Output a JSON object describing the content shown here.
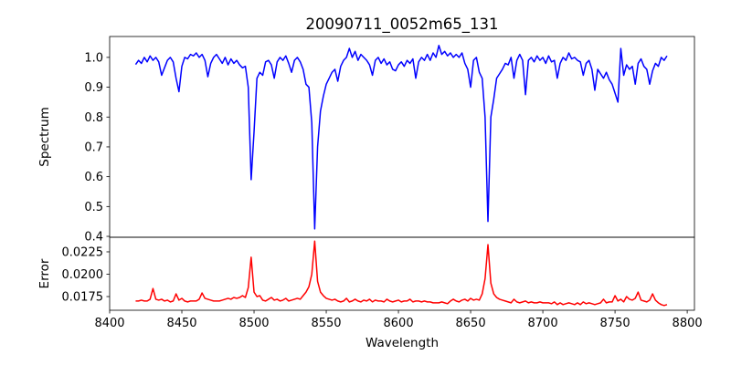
{
  "chart_data": [
    {
      "type": "line",
      "title": "20090711_0052m65_131",
      "xlabel": "",
      "ylabel": "Spectrum",
      "xlim": [
        8400,
        8805
      ],
      "ylim": [
        0.397,
        1.07
      ],
      "yticks": [
        "0.4",
        "0.5",
        "0.6",
        "0.7",
        "0.8",
        "0.9",
        "1.0"
      ],
      "ytick_values": [
        0.4,
        0.5,
        0.6,
        0.7,
        0.8,
        0.9,
        1.0
      ],
      "color": "#0000ff",
      "x_start": 8418,
      "x_step": 2,
      "values": [
        0.976,
        0.99,
        0.98,
        1.0,
        0.985,
        1.005,
        0.99,
        1.0,
        0.985,
        0.94,
        0.965,
        0.99,
        1.0,
        0.985,
        0.93,
        0.885,
        0.97,
        1.0,
        0.995,
        1.01,
        1.005,
        1.015,
        1.0,
        1.01,
        0.99,
        0.935,
        0.98,
        1.0,
        1.01,
        0.995,
        0.98,
        1.0,
        0.975,
        0.995,
        0.98,
        0.99,
        0.975,
        0.965,
        0.97,
        0.9,
        0.59,
        0.75,
        0.93,
        0.95,
        0.94,
        0.985,
        0.99,
        0.975,
        0.93,
        0.985,
        1.0,
        0.99,
        1.005,
        0.98,
        0.95,
        0.99,
        1.0,
        0.985,
        0.96,
        0.91,
        0.9,
        0.78,
        0.425,
        0.7,
        0.82,
        0.87,
        0.91,
        0.93,
        0.95,
        0.96,
        0.92,
        0.97,
        0.99,
        1.0,
        1.03,
        1.0,
        1.02,
        0.99,
        1.01,
        1.0,
        0.99,
        0.975,
        0.94,
        0.99,
        1.0,
        0.98,
        0.995,
        0.975,
        0.985,
        0.96,
        0.955,
        0.975,
        0.985,
        0.97,
        0.99,
        0.98,
        0.995,
        0.93,
        0.985,
        1.0,
        0.99,
        1.01,
        0.99,
        1.015,
        1.0,
        1.04,
        1.01,
        1.02,
        1.005,
        1.015,
        1.0,
        1.01,
        1.0,
        1.015,
        0.98,
        0.96,
        0.9,
        0.99,
        1.0,
        0.95,
        0.93,
        0.8,
        0.45,
        0.8,
        0.86,
        0.93,
        0.945,
        0.96,
        0.98,
        0.975,
        1.0,
        0.93,
        0.99,
        1.01,
        0.99,
        0.875,
        0.99,
        1.0,
        0.985,
        1.005,
        0.99,
        1.0,
        0.98,
        1.005,
        0.985,
        0.99,
        0.93,
        0.98,
        1.0,
        0.99,
        1.015,
        0.995,
        1.0,
        0.99,
        0.985,
        0.94,
        0.98,
        0.99,
        0.96,
        0.89,
        0.96,
        0.945,
        0.93,
        0.95,
        0.925,
        0.91,
        0.88,
        0.85,
        1.03,
        0.94,
        0.975,
        0.96,
        0.97,
        0.91,
        0.98,
        0.995,
        0.97,
        0.96,
        0.91,
        0.955,
        0.98,
        0.97,
        1.0,
        0.99,
        1.005
      ]
    },
    {
      "type": "line",
      "title": "",
      "xlabel": "Wavelength",
      "ylabel": "Error",
      "xlim": [
        8400,
        8805
      ],
      "ylim": [
        0.01597,
        0.02413
      ],
      "xticks": [
        "8400",
        "8450",
        "8500",
        "8550",
        "8600",
        "8650",
        "8700",
        "8750",
        "8800"
      ],
      "xtick_values": [
        8400,
        8450,
        8500,
        8550,
        8600,
        8650,
        8700,
        8750,
        8800
      ],
      "yticks": [
        "0.0175",
        "0.0200",
        "0.0225"
      ],
      "ytick_values": [
        0.0175,
        0.02,
        0.0225
      ],
      "color": "#ff0000",
      "x_start": 8418,
      "x_step": 2,
      "values": [
        0.017,
        0.017,
        0.0171,
        0.017,
        0.017,
        0.0172,
        0.0184,
        0.0172,
        0.0171,
        0.0172,
        0.017,
        0.0171,
        0.0169,
        0.017,
        0.0178,
        0.0171,
        0.0173,
        0.017,
        0.0169,
        0.017,
        0.017,
        0.017,
        0.0172,
        0.0179,
        0.0173,
        0.0172,
        0.0171,
        0.017,
        0.017,
        0.017,
        0.0171,
        0.0172,
        0.0173,
        0.0172,
        0.0174,
        0.0173,
        0.0174,
        0.0176,
        0.0174,
        0.0185,
        0.0219,
        0.018,
        0.0175,
        0.0176,
        0.0171,
        0.017,
        0.0172,
        0.0174,
        0.0171,
        0.0172,
        0.017,
        0.0171,
        0.0173,
        0.017,
        0.0171,
        0.0172,
        0.0173,
        0.0172,
        0.0176,
        0.018,
        0.0186,
        0.02,
        0.0237,
        0.0192,
        0.018,
        0.0176,
        0.0173,
        0.0172,
        0.0171,
        0.0172,
        0.017,
        0.0169,
        0.017,
        0.0173,
        0.0169,
        0.017,
        0.0172,
        0.017,
        0.0169,
        0.0171,
        0.017,
        0.0172,
        0.0169,
        0.0171,
        0.017,
        0.017,
        0.0169,
        0.0172,
        0.017,
        0.0169,
        0.017,
        0.0171,
        0.0169,
        0.017,
        0.017,
        0.0172,
        0.0169,
        0.017,
        0.017,
        0.0169,
        0.017,
        0.0169,
        0.0169,
        0.0168,
        0.0168,
        0.0168,
        0.0169,
        0.0168,
        0.0167,
        0.017,
        0.0172,
        0.017,
        0.0169,
        0.0171,
        0.0172,
        0.017,
        0.0173,
        0.0171,
        0.0172,
        0.0171,
        0.0178,
        0.0195,
        0.0233,
        0.019,
        0.0178,
        0.0174,
        0.0172,
        0.0171,
        0.017,
        0.0169,
        0.0168,
        0.0172,
        0.0169,
        0.0168,
        0.0169,
        0.017,
        0.0168,
        0.0169,
        0.0168,
        0.0168,
        0.0169,
        0.0168,
        0.0168,
        0.0168,
        0.0167,
        0.0169,
        0.0166,
        0.0168,
        0.0166,
        0.0167,
        0.0168,
        0.0167,
        0.0166,
        0.0168,
        0.0166,
        0.0169,
        0.0167,
        0.0168,
        0.0167,
        0.0166,
        0.0167,
        0.0168,
        0.0172,
        0.0168,
        0.0169,
        0.0169,
        0.0176,
        0.017,
        0.0172,
        0.0169,
        0.0175,
        0.0172,
        0.0171,
        0.0173,
        0.018,
        0.0171,
        0.017,
        0.0169,
        0.0171,
        0.0178,
        0.0171,
        0.0168,
        0.0166,
        0.0165,
        0.0166
      ]
    }
  ]
}
